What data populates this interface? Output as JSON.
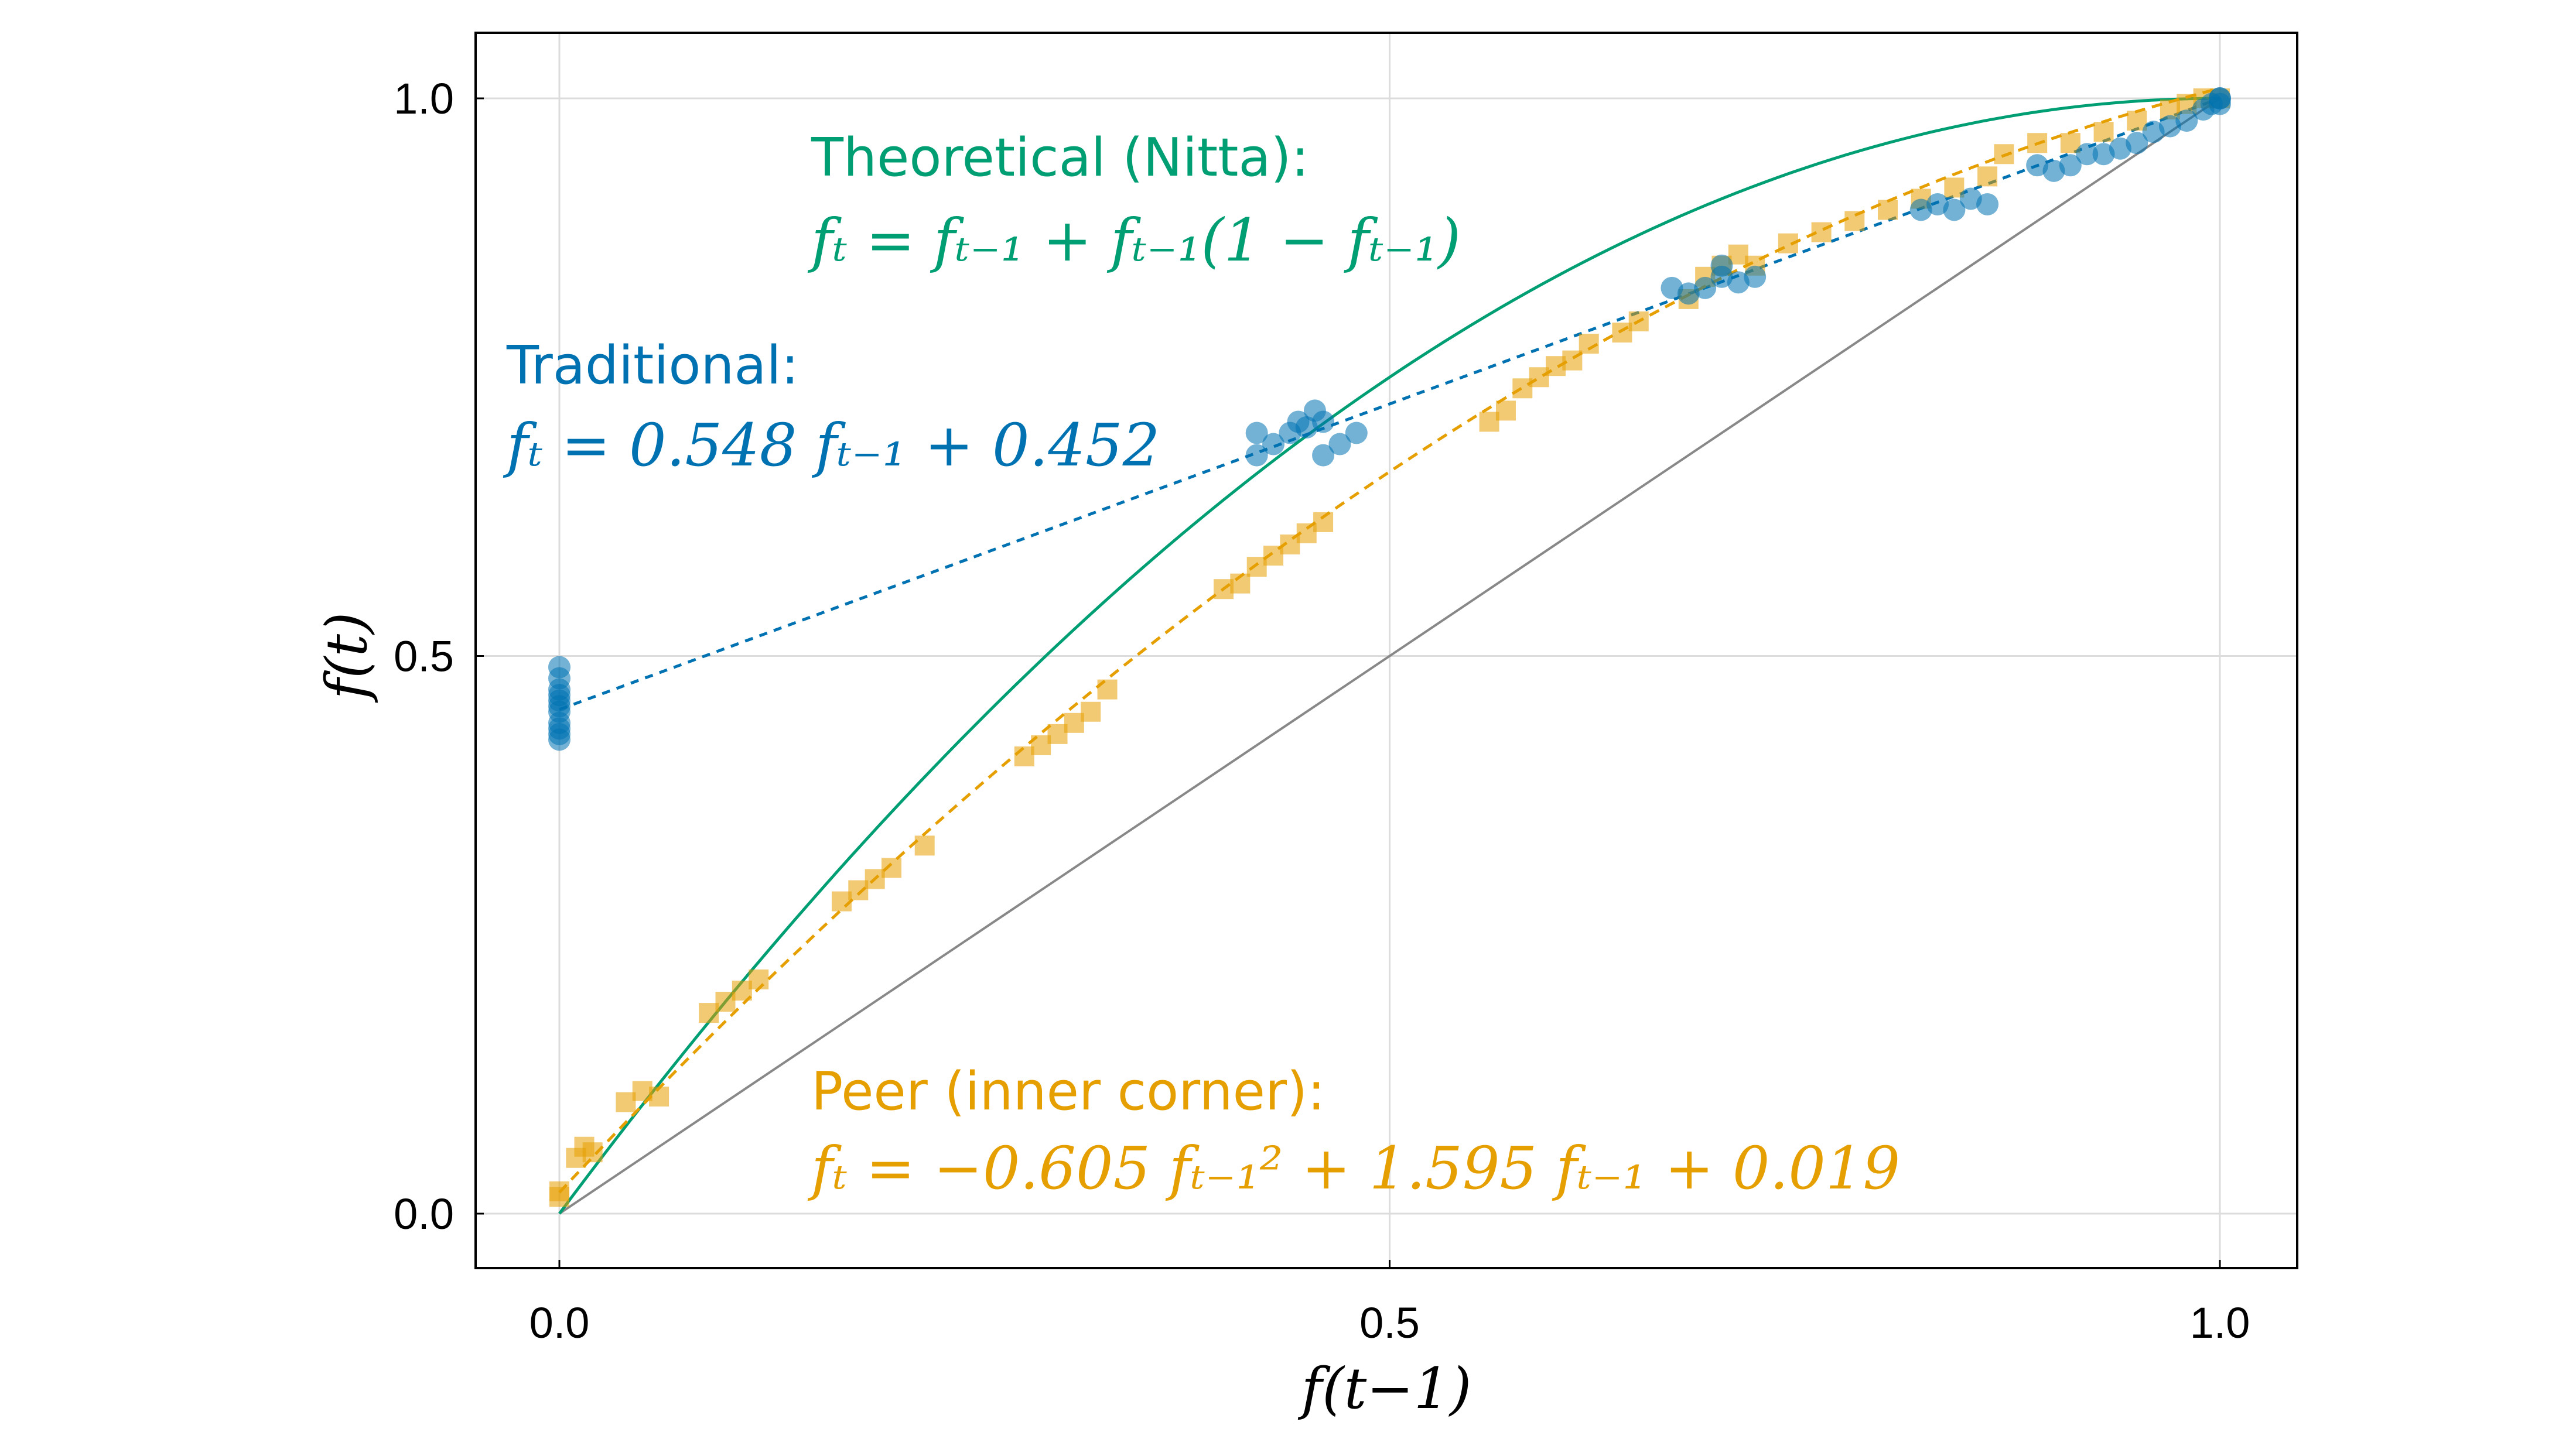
{
  "chart_data": {
    "type": "scatter",
    "xlabel": "f(t−1)",
    "ylabel": "f(t)",
    "xlim": [
      -0.1,
      1.02
    ],
    "ylim": [
      -0.05,
      1.06
    ],
    "xticks": [
      0.0,
      0.5,
      1.0
    ],
    "yticks": [
      0.0,
      0.5,
      1.0
    ],
    "xtick_labels": [
      "0.0",
      "0.5",
      "1.0"
    ],
    "ytick_labels": [
      "0.0",
      "0.5",
      "1.0"
    ],
    "grid": true,
    "colors": {
      "traditional": "#0072b2",
      "peer": "#e69f00",
      "theoretical": "#009e73",
      "identity": "#888888"
    },
    "annotations": {
      "theoretical_title": "Theoretical (Nitta):",
      "theoretical_eq": "fₜ = fₜ₋₁ + fₜ₋₁(1 − fₜ₋₁)",
      "traditional_title": "Traditional:",
      "traditional_eq": "fₜ = 0.548 fₜ₋₁ + 0.452",
      "peer_title": "Peer (inner corner):",
      "peer_eq": "fₜ = −0.605 fₜ₋₁² + 1.595 fₜ₋₁ + 0.019"
    },
    "series": [
      {
        "name": "Traditional",
        "marker": "circle",
        "x": [
          0.0,
          0.0,
          0.0,
          0.0,
          0.0,
          0.0,
          0.0,
          0.0,
          0.0,
          0.0,
          0.0,
          0.42,
          0.42,
          0.43,
          0.44,
          0.445,
          0.45,
          0.455,
          0.46,
          0.47,
          0.48,
          0.46,
          0.67,
          0.68,
          0.69,
          0.7,
          0.7,
          0.71,
          0.72,
          0.82,
          0.83,
          0.84,
          0.85,
          0.86,
          0.89,
          0.9,
          0.91,
          0.92,
          0.93,
          0.94,
          0.95,
          0.96,
          0.97,
          0.98,
          0.99,
          0.995,
          1.0,
          1.0,
          1.0
        ],
        "y": [
          0.49,
          0.48,
          0.47,
          0.465,
          0.46,
          0.455,
          0.45,
          0.44,
          0.435,
          0.43,
          0.425,
          0.7,
          0.68,
          0.69,
          0.7,
          0.71,
          0.705,
          0.72,
          0.71,
          0.69,
          0.7,
          0.68,
          0.83,
          0.825,
          0.83,
          0.84,
          0.85,
          0.835,
          0.84,
          0.9,
          0.905,
          0.9,
          0.91,
          0.905,
          0.94,
          0.935,
          0.94,
          0.95,
          0.95,
          0.955,
          0.96,
          0.97,
          0.975,
          0.98,
          0.99,
          0.995,
          1.0,
          1.0,
          0.995
        ]
      },
      {
        "name": "Peer (inner corner)",
        "marker": "square",
        "x": [
          0.0,
          0.0,
          0.01,
          0.015,
          0.02,
          0.04,
          0.05,
          0.06,
          0.09,
          0.1,
          0.11,
          0.12,
          0.17,
          0.18,
          0.19,
          0.2,
          0.22,
          0.28,
          0.29,
          0.3,
          0.31,
          0.32,
          0.33,
          0.4,
          0.41,
          0.42,
          0.43,
          0.44,
          0.45,
          0.46,
          0.56,
          0.57,
          0.58,
          0.59,
          0.6,
          0.61,
          0.62,
          0.64,
          0.65,
          0.68,
          0.69,
          0.7,
          0.71,
          0.72,
          0.74,
          0.76,
          0.78,
          0.8,
          0.82,
          0.84,
          0.86,
          0.87,
          0.89,
          0.91,
          0.93,
          0.95,
          0.97,
          0.98,
          0.99,
          1.0
        ],
        "y": [
          0.02,
          0.015,
          0.05,
          0.06,
          0.055,
          0.1,
          0.11,
          0.105,
          0.18,
          0.19,
          0.2,
          0.21,
          0.28,
          0.29,
          0.3,
          0.31,
          0.33,
          0.41,
          0.42,
          0.43,
          0.44,
          0.45,
          0.47,
          0.56,
          0.565,
          0.58,
          0.59,
          0.6,
          0.61,
          0.62,
          0.71,
          0.72,
          0.74,
          0.75,
          0.76,
          0.765,
          0.78,
          0.79,
          0.8,
          0.82,
          0.84,
          0.85,
          0.86,
          0.85,
          0.87,
          0.88,
          0.89,
          0.9,
          0.91,
          0.92,
          0.93,
          0.95,
          0.96,
          0.96,
          0.97,
          0.98,
          0.99,
          0.995,
          1.0,
          1.0
        ]
      },
      {
        "name": "Theoretical (Nitta)",
        "marker": "line",
        "equation": "f_t = f_{t-1} + f_{t-1}(1 - f_{t-1})"
      },
      {
        "name": "Traditional fit",
        "marker": "dotted-line",
        "slope": 0.548,
        "intercept": 0.452
      },
      {
        "name": "Peer fit",
        "marker": "dashed-line",
        "a": -0.605,
        "b": 1.595,
        "c": 0.019
      }
    ]
  }
}
